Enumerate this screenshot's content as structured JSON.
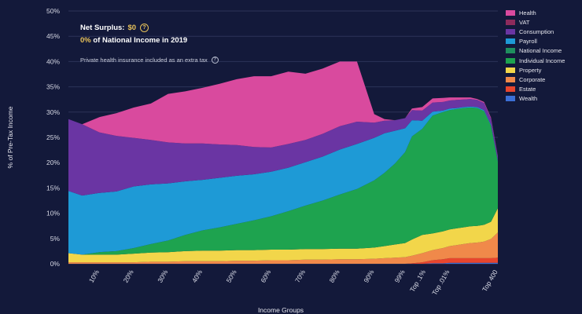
{
  "header": {
    "surplus_label": "Net Surplus:",
    "surplus_value": "$0",
    "income_share": "0%",
    "income_text": "of National Income in 2019",
    "note": "Private health insurance included as an extra tax"
  },
  "chart_data": {
    "type": "area",
    "stacked": true,
    "xlabel": "Income Groups",
    "ylabel": "% of Pre-Tax Income",
    "ylim": [
      0,
      50
    ],
    "ytick_labels": [
      "0%",
      "5%",
      "10%",
      "15%",
      "20%",
      "25%",
      "30%",
      "35%",
      "40%",
      "45%",
      "50%"
    ],
    "xtick_labels": [
      "10%",
      "20%",
      "30%",
      "40%",
      "50%",
      "60%",
      "70%",
      "80%",
      "90%",
      "99%",
      "Top .1%",
      "Top .01%",
      "Top 400"
    ],
    "xtick_positions": [
      10,
      20,
      30,
      40,
      50,
      60,
      70,
      80,
      90,
      99,
      105,
      112,
      126
    ],
    "grid": true,
    "legend_position": "right",
    "x": [
      1,
      5,
      10,
      15,
      20,
      25,
      30,
      35,
      40,
      45,
      50,
      55,
      60,
      65,
      70,
      75,
      80,
      85,
      90,
      93,
      96,
      99,
      101,
      104,
      107,
      110,
      112,
      114,
      116,
      118,
      120,
      122,
      124,
      126
    ],
    "series": [
      {
        "name": "Wealth",
        "color": "#3b6fd6",
        "values": [
          0,
          0,
          0,
          0,
          0,
          0,
          0,
          0,
          0,
          0,
          0,
          0,
          0,
          0,
          0,
          0,
          0,
          0,
          0,
          0,
          0,
          0,
          0,
          0,
          0.1,
          0.1,
          0.2,
          0.2,
          0.2,
          0.2,
          0.2,
          0.2,
          0.2,
          0.2
        ]
      },
      {
        "name": "Estate",
        "color": "#e8452d",
        "values": [
          0,
          0,
          0,
          0,
          0,
          0,
          0,
          0,
          0,
          0,
          0,
          0,
          0,
          0,
          0,
          0,
          0,
          0,
          0,
          0,
          0,
          0,
          0.1,
          0.3,
          0.6,
          0.8,
          0.9,
          0.9,
          0.9,
          0.9,
          0.9,
          0.9,
          0.9,
          1.0
        ]
      },
      {
        "name": "Corporate",
        "color": "#f0894a",
        "values": [
          0.3,
          0.3,
          0.3,
          0.3,
          0.3,
          0.4,
          0.4,
          0.5,
          0.5,
          0.5,
          0.6,
          0.6,
          0.7,
          0.7,
          0.8,
          0.8,
          0.9,
          0.9,
          1.0,
          1.1,
          1.2,
          1.3,
          1.5,
          1.8,
          2.0,
          2.2,
          2.4,
          2.6,
          2.8,
          3.0,
          3.1,
          3.3,
          3.8,
          5.0
        ]
      },
      {
        "name": "Property",
        "color": "#f2d64a",
        "values": [
          1.8,
          1.5,
          1.5,
          1.5,
          1.7,
          1.8,
          1.9,
          2.0,
          2.1,
          2.1,
          2.1,
          2.1,
          2.1,
          2.1,
          2.1,
          2.1,
          2.1,
          2.1,
          2.2,
          2.4,
          2.6,
          2.8,
          3.2,
          3.6,
          3.3,
          3.3,
          3.3,
          3.3,
          3.3,
          3.3,
          3.3,
          3.3,
          3.4,
          4.8
        ]
      },
      {
        "name": "Individual Income",
        "color": "#1ea34f",
        "values": [
          0,
          0,
          0.5,
          0.7,
          1.1,
          1.7,
          2.3,
          3.2,
          4.0,
          4.6,
          5.2,
          5.9,
          6.6,
          7.6,
          8.6,
          9.6,
          10.7,
          11.8,
          13.3,
          14.5,
          16.0,
          18.0,
          20.4,
          21.0,
          23.3,
          23.6,
          23.6,
          23.6,
          23.6,
          23.5,
          23.3,
          22.5,
          19.0,
          9.2
        ]
      },
      {
        "name": "National Income",
        "color": "#1f8f5e",
        "values": [
          0,
          0,
          0,
          0,
          0,
          0,
          0,
          0,
          0,
          0,
          0,
          0,
          0,
          0,
          0,
          0,
          0,
          0,
          0,
          0,
          0,
          0,
          0,
          0,
          0,
          0,
          0,
          0,
          0,
          0,
          0,
          0,
          0,
          0
        ]
      },
      {
        "name": "Payroll",
        "color": "#1e9ad6",
        "values": [
          12.3,
          11.7,
          11.7,
          11.8,
          12.2,
          11.8,
          11.3,
          10.6,
          10.0,
          9.8,
          9.5,
          9.1,
          8.8,
          8.6,
          8.6,
          8.7,
          8.9,
          8.9,
          8.4,
          7.8,
          6.5,
          4.7,
          3.2,
          1.6,
          0.8,
          0.3,
          0.3,
          0.2,
          0.2,
          0.2,
          0.2,
          0.2,
          0.2,
          0.2
        ]
      },
      {
        "name": "Consumption",
        "color": "#6a35a3",
        "values": [
          14.2,
          14.1,
          12.0,
          11.0,
          9.6,
          8.8,
          8.1,
          7.5,
          7.2,
          6.6,
          6.1,
          5.4,
          4.8,
          4.7,
          4.4,
          4.5,
          4.6,
          4.4,
          3.0,
          2.5,
          2.1,
          2.0,
          2.0,
          2.0,
          1.8,
          1.7,
          1.6,
          1.6,
          1.5,
          1.5,
          1.4,
          1.4,
          1.2,
          0.8
        ]
      },
      {
        "name": "VAT",
        "color": "#8d2b5c",
        "values": [
          0,
          0,
          0,
          0,
          0,
          0,
          0,
          0,
          0,
          0,
          0,
          0,
          0,
          0,
          0,
          0,
          0,
          0,
          0,
          0,
          0,
          0,
          0,
          0,
          0,
          0,
          0,
          0,
          0,
          0,
          0,
          0,
          0,
          0
        ]
      },
      {
        "name": "Health",
        "color": "#d94a9e",
        "values": [
          0,
          0,
          3.0,
          4.5,
          6.0,
          7.2,
          9.6,
          10.3,
          11.0,
          12.0,
          13.0,
          14.0,
          14.1,
          14.3,
          13.1,
          12.9,
          12.8,
          11.9,
          1.7,
          0.3,
          0,
          0,
          0.3,
          0.7,
          0.8,
          0.8,
          0.6,
          0.5,
          0.4,
          0.3,
          0.2,
          0.2,
          0.2,
          0.1
        ]
      }
    ]
  },
  "legend": {
    "items": [
      {
        "label": "Health",
        "color": "#d94a9e"
      },
      {
        "label": "VAT",
        "color": "#8d2b5c"
      },
      {
        "label": "Consumption",
        "color": "#6a35a3"
      },
      {
        "label": "Payroll",
        "color": "#1e9ad6"
      },
      {
        "label": "National Income",
        "color": "#1f8f5e"
      },
      {
        "label": "Individual Income",
        "color": "#1ea34f"
      },
      {
        "label": "Property",
        "color": "#f2d64a"
      },
      {
        "label": "Corporate",
        "color": "#f0894a"
      },
      {
        "label": "Estate",
        "color": "#e8452d"
      },
      {
        "label": "Wealth",
        "color": "#3b6fd6"
      }
    ]
  }
}
